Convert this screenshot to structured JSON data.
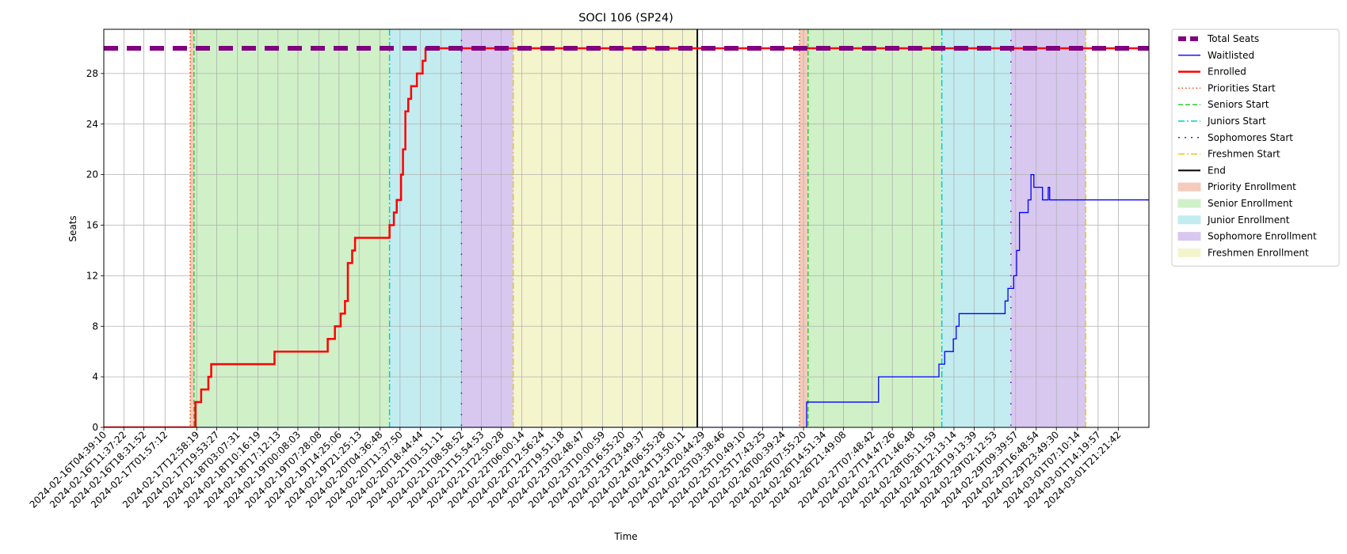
{
  "chart_data": {
    "type": "line",
    "title": "SOCI 106 (SP24)",
    "xlabel": "Time",
    "ylabel": "Seats",
    "grid": true,
    "legend_position": "outside-right-top",
    "x_start": "2024-02-16T04:39:10",
    "x_end": "2024-03-02T08:00:00",
    "ylim": [
      0,
      31.5
    ],
    "y_ticks": [
      0,
      4,
      8,
      12,
      16,
      20,
      24,
      28
    ],
    "x_ticks": [
      "2024-02-16T04:39:10",
      "2024-02-16T11:37:22",
      "2024-02-16T18:31:52",
      "2024-02-17T01:57:12",
      "2024-02-17T12:58:19",
      "2024-02-17T19:53:27",
      "2024-02-18T03:07:31",
      "2024-02-18T10:16:19",
      "2024-02-18T17:12:13",
      "2024-02-19T00:08:03",
      "2024-02-19T07:28:08",
      "2024-02-19T14:25:06",
      "2024-02-19T21:25:13",
      "2024-02-20T04:36:48",
      "2024-02-20T11:37:50",
      "2024-02-20T18:44:44",
      "2024-02-21T01:51:11",
      "2024-02-21T08:58:52",
      "2024-02-21T15:54:53",
      "2024-02-21T22:50:28",
      "2024-02-22T06:00:14",
      "2024-02-22T12:56:24",
      "2024-02-22T19:51:18",
      "2024-02-23T02:48:47",
      "2024-02-23T10:00:59",
      "2024-02-23T16:55:20",
      "2024-02-23T23:49:37",
      "2024-02-24T06:55:28",
      "2024-02-24T13:50:11",
      "2024-02-24T20:44:29",
      "2024-02-25T03:38:46",
      "2024-02-25T10:49:10",
      "2024-02-25T17:43:25",
      "2024-02-26T00:39:24",
      "2024-02-26T07:55:20",
      "2024-02-26T14:51:34",
      "2024-02-26T21:49:08",
      "2024-02-27T07:48:42",
      "2024-02-27T14:47:26",
      "2024-02-27T21:46:48",
      "2024-02-28T05:11:59",
      "2024-02-28T12:13:14",
      "2024-02-28T19:13:39",
      "2024-02-29T02:12:53",
      "2024-02-29T09:39:57",
      "2024-02-29T16:48:54",
      "2024-02-29T23:49:30",
      "2024-03-01T07:10:14",
      "2024-03-01T14:19:57",
      "2024-03-01T21:21:42"
    ],
    "legend": [
      {
        "label": "Total Seats",
        "kind": "line",
        "color": "#800080",
        "style": "dashed-thick"
      },
      {
        "label": "Waitlisted",
        "kind": "line",
        "color": "#0000ff",
        "style": "solid-thin"
      },
      {
        "label": "Enrolled",
        "kind": "line",
        "color": "#ff0000",
        "style": "solid-thick"
      },
      {
        "label": "Priorities Start",
        "kind": "line",
        "color": "#ff4500",
        "style": "dotted"
      },
      {
        "label": "Seniors Start",
        "kind": "line",
        "color": "#32cd32",
        "style": "dashed"
      },
      {
        "label": "Juniors Start",
        "kind": "line",
        "color": "#00ced1",
        "style": "dashdot"
      },
      {
        "label": "Sophomores Start",
        "kind": "line",
        "color": "#6a0dad",
        "style": "loosedot"
      },
      {
        "label": "Freshmen Start",
        "kind": "line",
        "color": "#e6c619",
        "style": "dashdot"
      },
      {
        "label": "End",
        "kind": "line",
        "color": "#000000",
        "style": "solid"
      },
      {
        "label": "Priority Enrollment",
        "kind": "patch",
        "color": "#f4cbbc"
      },
      {
        "label": "Senior Enrollment",
        "kind": "patch",
        "color": "#d0f0c8"
      },
      {
        "label": "Junior Enrollment",
        "kind": "patch",
        "color": "#c2ecf0"
      },
      {
        "label": "Sophomore Enrollment",
        "kind": "patch",
        "color": "#d8c8f0"
      },
      {
        "label": "Freshmen Enrollment",
        "kind": "patch",
        "color": "#f4f5cc"
      }
    ],
    "periods": [
      {
        "label": "Priority Enrollment",
        "start": "2024-02-17T10:41:00",
        "end": "2024-02-17T12:00:00",
        "color": "#f4cbbc"
      },
      {
        "label": "Senior Enrollment",
        "start": "2024-02-17T12:00:00",
        "end": "2024-02-20T08:00:00",
        "color": "#d0f0c8"
      },
      {
        "label": "Junior Enrollment",
        "start": "2024-02-20T08:00:00",
        "end": "2024-02-21T09:00:00",
        "color": "#c2ecf0"
      },
      {
        "label": "Sophomore Enrollment",
        "start": "2024-02-21T09:00:00",
        "end": "2024-02-22T03:00:00",
        "color": "#d8c8f0"
      },
      {
        "label": "Freshmen Enrollment",
        "start": "2024-02-22T03:00:00",
        "end": "2024-02-24T19:00:00",
        "color": "#f4f5cc"
      },
      {
        "label": "Priority Enrollment",
        "start": "2024-02-26T06:30:00",
        "end": "2024-02-26T09:30:00",
        "color": "#f4cbbc"
      },
      {
        "label": "Senior Enrollment",
        "start": "2024-02-26T09:30:00",
        "end": "2024-02-28T08:00:00",
        "color": "#d0f0c8"
      },
      {
        "label": "Junior Enrollment",
        "start": "2024-02-28T08:00:00",
        "end": "2024-02-29T08:00:00",
        "color": "#c2ecf0"
      },
      {
        "label": "Sophomore Enrollment",
        "start": "2024-02-29T08:00:00",
        "end": "2024-03-01T10:00:00",
        "color": "#d8c8f0"
      }
    ],
    "markers": [
      {
        "label": "Priorities Start",
        "time": "2024-02-17T10:41:00",
        "color": "#ff4500",
        "style": "dotted"
      },
      {
        "label": "Seniors Start",
        "time": "2024-02-17T12:00:00",
        "color": "#32cd32",
        "style": "dashed"
      },
      {
        "label": "Juniors Start",
        "time": "2024-02-20T08:00:00",
        "color": "#00ced1",
        "style": "dashdot"
      },
      {
        "label": "Sophomores Start",
        "time": "2024-02-21T09:00:00",
        "color": "#6a0dad",
        "style": "loosedot"
      },
      {
        "label": "Freshmen Start",
        "time": "2024-02-22T03:00:00",
        "color": "#e6c619",
        "style": "dashdot"
      },
      {
        "label": "End",
        "time": "2024-02-24T19:00:00",
        "color": "#000000",
        "style": "solid"
      },
      {
        "label": "Priorities Start",
        "time": "2024-02-26T06:30:00",
        "color": "#ff4500",
        "style": "dotted"
      },
      {
        "label": "Seniors Start",
        "time": "2024-02-26T09:30:00",
        "color": "#32cd32",
        "style": "dashed"
      },
      {
        "label": "Juniors Start",
        "time": "2024-02-28T08:00:00",
        "color": "#00ced1",
        "style": "dashdot"
      },
      {
        "label": "Sophomores Start",
        "time": "2024-02-29T08:00:00",
        "color": "#6a0dad",
        "style": "loosedot"
      },
      {
        "label": "Freshmen Start",
        "time": "2024-03-01T10:00:00",
        "color": "#e6c619",
        "style": "dashdot"
      }
    ],
    "series": [
      {
        "name": "Total Seats",
        "color": "#800080",
        "style": "dashed-thick",
        "points": [
          [
            "2024-02-16T04:39:10",
            30
          ],
          [
            "2024-03-02T08:00:00",
            30
          ]
        ]
      },
      {
        "name": "Waitlisted",
        "color": "#0000ff",
        "style": "solid-thin",
        "points": [
          [
            "2024-02-16T04:39:10",
            0
          ],
          [
            "2024-02-26T09:00:00",
            0
          ],
          [
            "2024-02-26T09:00:00",
            2
          ],
          [
            "2024-02-27T10:00:00",
            2
          ],
          [
            "2024-02-27T10:00:00",
            4
          ],
          [
            "2024-02-28T07:00:00",
            4
          ],
          [
            "2024-02-28T07:00:00",
            5
          ],
          [
            "2024-02-28T09:00:00",
            5
          ],
          [
            "2024-02-28T09:00:00",
            6
          ],
          [
            "2024-02-28T12:00:00",
            6
          ],
          [
            "2024-02-28T12:00:00",
            7
          ],
          [
            "2024-02-28T13:00:00",
            7
          ],
          [
            "2024-02-28T13:00:00",
            8
          ],
          [
            "2024-02-28T14:00:00",
            8
          ],
          [
            "2024-02-28T14:00:00",
            9
          ],
          [
            "2024-02-29T06:00:00",
            9
          ],
          [
            "2024-02-29T06:00:00",
            10
          ],
          [
            "2024-02-29T07:00:00",
            10
          ],
          [
            "2024-02-29T07:00:00",
            11
          ],
          [
            "2024-02-29T09:00:00",
            11
          ],
          [
            "2024-02-29T09:00:00",
            12
          ],
          [
            "2024-02-29T10:00:00",
            12
          ],
          [
            "2024-02-29T10:00:00",
            14
          ],
          [
            "2024-02-29T11:00:00",
            14
          ],
          [
            "2024-02-29T11:00:00",
            17
          ],
          [
            "2024-02-29T14:00:00",
            17
          ],
          [
            "2024-02-29T14:00:00",
            18
          ],
          [
            "2024-02-29T15:00:00",
            18
          ],
          [
            "2024-02-29T15:00:00",
            20
          ],
          [
            "2024-02-29T16:00:00",
            20
          ],
          [
            "2024-02-29T16:00:00",
            19
          ],
          [
            "2024-02-29T19:00:00",
            19
          ],
          [
            "2024-02-29T19:00:00",
            18
          ],
          [
            "2024-02-29T21:00:00",
            18
          ],
          [
            "2024-02-29T21:00:00",
            19
          ],
          [
            "2024-02-29T21:30:00",
            19
          ],
          [
            "2024-02-29T21:30:00",
            18
          ],
          [
            "2024-03-02T08:00:00",
            18
          ]
        ]
      },
      {
        "name": "Enrolled",
        "color": "#ff0000",
        "style": "solid-thick",
        "points": [
          [
            "2024-02-16T04:39:10",
            0
          ],
          [
            "2024-02-17T12:30:00",
            0
          ],
          [
            "2024-02-17T12:30:00",
            2
          ],
          [
            "2024-02-17T14:30:00",
            2
          ],
          [
            "2024-02-17T14:30:00",
            3
          ],
          [
            "2024-02-17T17:00:00",
            3
          ],
          [
            "2024-02-17T17:00:00",
            4
          ],
          [
            "2024-02-17T18:00:00",
            4
          ],
          [
            "2024-02-17T18:00:00",
            5
          ],
          [
            "2024-02-18T16:00:00",
            5
          ],
          [
            "2024-02-18T16:00:00",
            6
          ],
          [
            "2024-02-19T10:30:00",
            6
          ],
          [
            "2024-02-19T10:30:00",
            7
          ],
          [
            "2024-02-19T13:00:00",
            7
          ],
          [
            "2024-02-19T13:00:00",
            8
          ],
          [
            "2024-02-19T15:00:00",
            8
          ],
          [
            "2024-02-19T15:00:00",
            9
          ],
          [
            "2024-02-19T16:30:00",
            9
          ],
          [
            "2024-02-19T16:30:00",
            10
          ],
          [
            "2024-02-19T17:30:00",
            10
          ],
          [
            "2024-02-19T17:30:00",
            13
          ],
          [
            "2024-02-19T19:00:00",
            13
          ],
          [
            "2024-02-19T19:00:00",
            14
          ],
          [
            "2024-02-19T20:00:00",
            14
          ],
          [
            "2024-02-19T20:00:00",
            15
          ],
          [
            "2024-02-20T08:00:00",
            15
          ],
          [
            "2024-02-20T08:00:00",
            16
          ],
          [
            "2024-02-20T09:30:00",
            16
          ],
          [
            "2024-02-20T09:30:00",
            17
          ],
          [
            "2024-02-20T10:30:00",
            17
          ],
          [
            "2024-02-20T10:30:00",
            18
          ],
          [
            "2024-02-20T12:00:00",
            18
          ],
          [
            "2024-02-20T12:00:00",
            20
          ],
          [
            "2024-02-20T12:40:00",
            20
          ],
          [
            "2024-02-20T12:40:00",
            22
          ],
          [
            "2024-02-20T13:30:00",
            22
          ],
          [
            "2024-02-20T13:30:00",
            25
          ],
          [
            "2024-02-20T14:30:00",
            25
          ],
          [
            "2024-02-20T14:30:00",
            26
          ],
          [
            "2024-02-20T15:30:00",
            26
          ],
          [
            "2024-02-20T15:30:00",
            27
          ],
          [
            "2024-02-20T17:30:00",
            27
          ],
          [
            "2024-02-20T17:30:00",
            28
          ],
          [
            "2024-02-20T19:30:00",
            28
          ],
          [
            "2024-02-20T19:30:00",
            29
          ],
          [
            "2024-02-20T20:30:00",
            29
          ],
          [
            "2024-02-20T20:30:00",
            30
          ],
          [
            "2024-03-02T08:00:00",
            30
          ]
        ]
      }
    ]
  }
}
